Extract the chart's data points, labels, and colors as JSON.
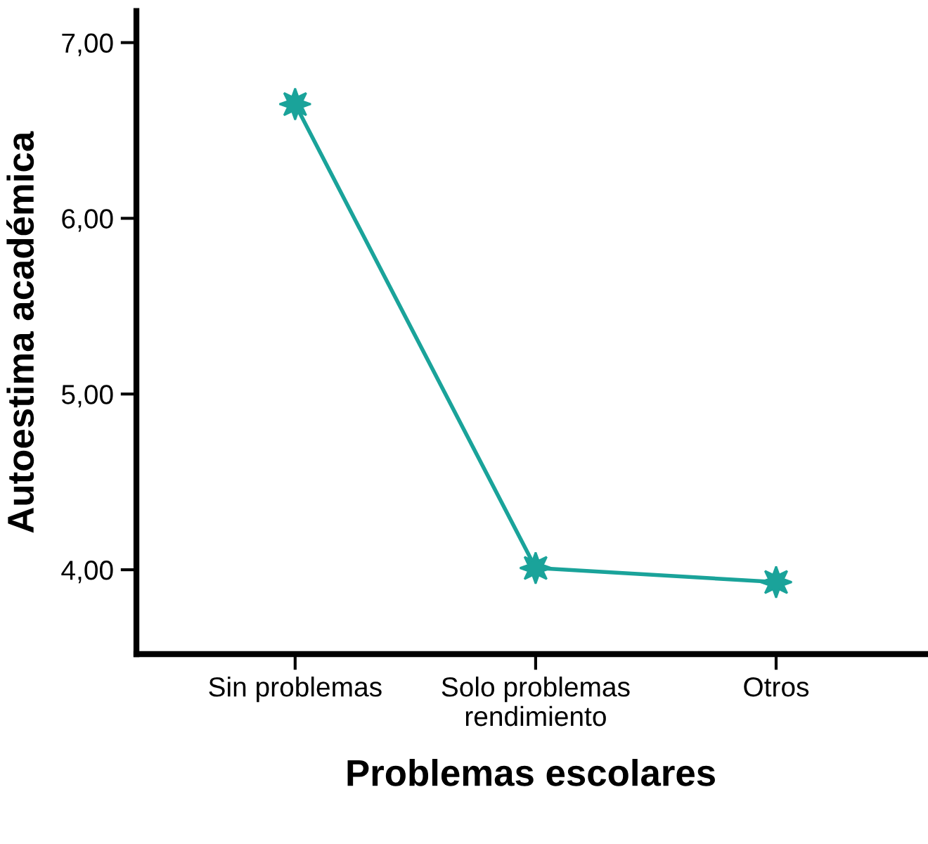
{
  "chart_data": {
    "type": "line",
    "xlabel": "Problemas escolares",
    "ylabel": "Autoestima académica",
    "categories": [
      "Sin problemas",
      "Solo problemas\nrendimiento",
      "Otros"
    ],
    "series": [
      {
        "color": "#1aa39a",
        "values": [
          6.65,
          4.01,
          3.93
        ]
      }
    ],
    "ylim": [
      3.52,
      7.18
    ],
    "yticks": [
      {
        "value": 4,
        "label": "4,00"
      },
      {
        "value": 5,
        "label": "5,00"
      },
      {
        "value": 6,
        "label": "6,00"
      },
      {
        "value": 7,
        "label": "7,00"
      }
    ],
    "grid": false,
    "legend": false,
    "marker": "star",
    "line_style": "solid"
  }
}
